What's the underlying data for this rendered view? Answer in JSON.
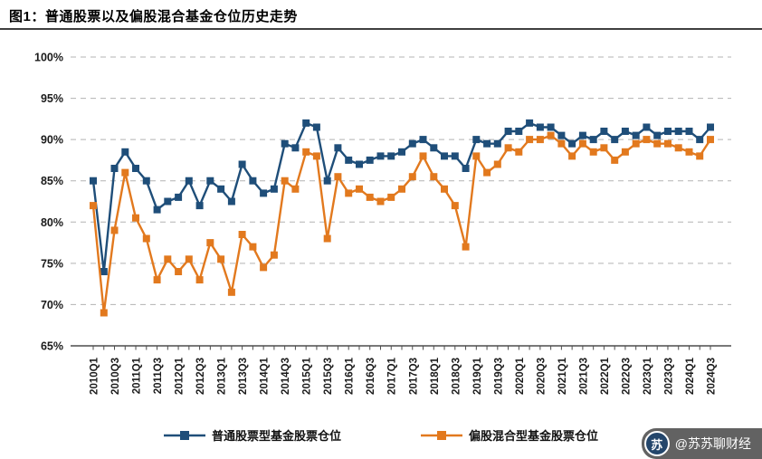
{
  "title": "图1：普通股票以及偏股混合基金仓位历史走势",
  "watermark": {
    "handle": "@苏苏聊财经",
    "avatar_glyph": "苏"
  },
  "colors": {
    "series1": "#1F4E79",
    "series2": "#E2791E",
    "grid": "#b3b3b3",
    "axis": "#4d4d4d",
    "tick_label": "#1a1a1a"
  },
  "chart_data": {
    "type": "line",
    "title": "图1：普通股票以及偏股混合基金仓位历史走势",
    "x": [
      "2010Q1",
      "2010Q2",
      "2010Q3",
      "2010Q4",
      "2011Q1",
      "2011Q2",
      "2011Q3",
      "2011Q4",
      "2012Q1",
      "2012Q2",
      "2012Q3",
      "2012Q4",
      "2013Q1",
      "2013Q2",
      "2013Q3",
      "2013Q4",
      "2014Q1",
      "2014Q2",
      "2014Q3",
      "2014Q4",
      "2015Q1",
      "2015Q2",
      "2015Q3",
      "2015Q4",
      "2016Q1",
      "2016Q2",
      "2016Q3",
      "2016Q4",
      "2017Q1",
      "2017Q2",
      "2017Q3",
      "2017Q4",
      "2018Q1",
      "2018Q2",
      "2018Q3",
      "2018Q4",
      "2019Q1",
      "2019Q2",
      "2019Q3",
      "2019Q4",
      "2020Q1",
      "2020Q2",
      "2020Q3",
      "2020Q4",
      "2021Q1",
      "2021Q2",
      "2021Q3",
      "2021Q4",
      "2022Q1",
      "2022Q2",
      "2022Q3",
      "2022Q4",
      "2023Q1",
      "2023Q2",
      "2023Q3",
      "2023Q4",
      "2024Q1",
      "2024Q2",
      "2024Q3"
    ],
    "x_label_interval": 2,
    "ylim": [
      65,
      100
    ],
    "yticks": [
      "100%",
      "95%",
      "90%",
      "85%",
      "80%",
      "75%",
      "70%",
      "65%"
    ],
    "ytick_values": [
      100,
      95,
      90,
      85,
      80,
      75,
      70,
      65
    ],
    "grid": "horizontal-dashed",
    "legend_position": "bottom",
    "series": [
      {
        "name": "普通股票型基金股票仓位",
        "color": "#1F4E79",
        "marker": "square",
        "values": [
          85,
          74,
          86.5,
          88.5,
          86.5,
          85,
          81.5,
          82.5,
          83,
          85,
          82,
          85,
          84,
          82.5,
          87,
          85,
          83.5,
          84,
          89.5,
          89,
          92,
          91.5,
          85,
          89,
          87.5,
          87,
          87.5,
          88,
          88,
          88.5,
          89.5,
          90,
          89,
          88,
          88,
          86.5,
          90,
          89.5,
          89.5,
          91,
          91,
          92,
          91.5,
          91.5,
          90.5,
          89.5,
          90.5,
          90,
          91,
          90,
          91,
          90.5,
          91.5,
          90.5,
          91,
          91,
          91,
          90,
          91.5
        ]
      },
      {
        "name": "偏股混合型基金股票仓位",
        "color": "#E2791E",
        "marker": "square",
        "values": [
          82,
          69,
          79,
          86,
          80.5,
          78,
          73,
          75.5,
          74,
          75.5,
          73,
          77.5,
          75.5,
          71.5,
          78.5,
          77,
          74.5,
          76,
          85,
          84,
          88.5,
          88,
          78,
          85.5,
          83.5,
          84,
          83,
          82.5,
          83,
          84,
          85.5,
          88,
          85.5,
          84,
          82,
          77,
          88,
          86,
          87,
          89,
          88.5,
          90,
          90,
          90.5,
          89.5,
          88,
          89.5,
          88.5,
          89,
          87.5,
          88.5,
          89.5,
          90,
          89.5,
          89.5,
          89,
          88.5,
          88,
          90
        ]
      }
    ]
  }
}
